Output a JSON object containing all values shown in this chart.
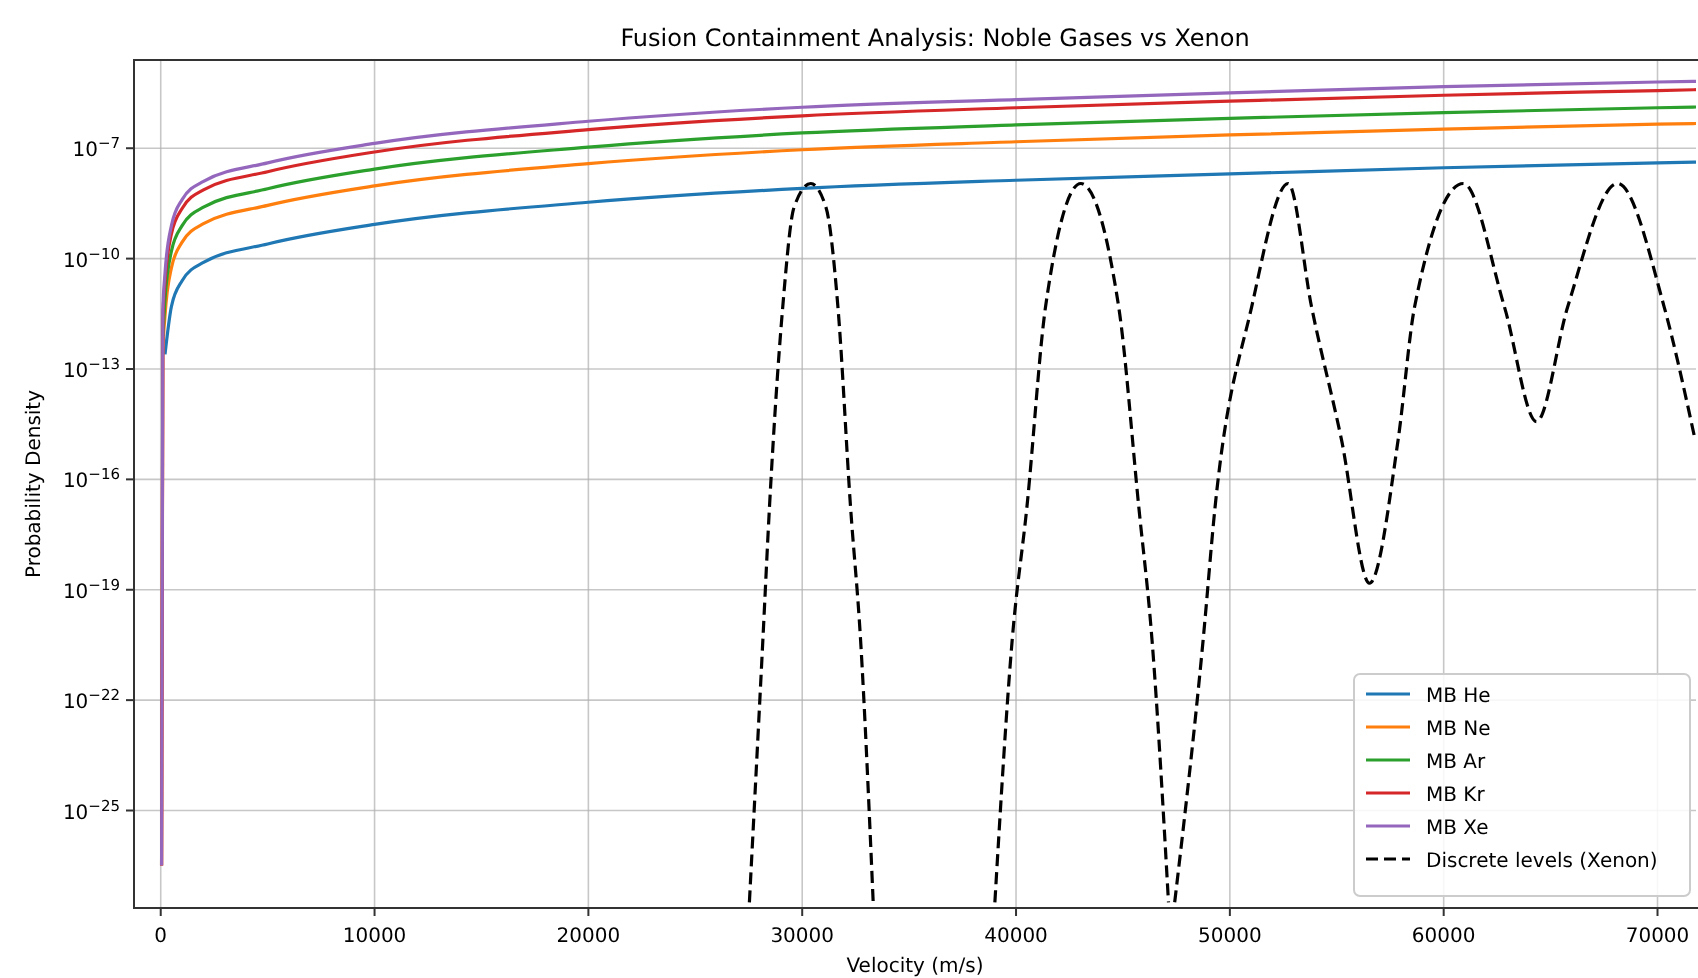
{
  "chart_data": {
    "type": "line",
    "title": "Fusion Containment Analysis: Noble Gases vs Xenon",
    "xlabel": "Velocity (m/s)",
    "ylabel": "Probability Density",
    "log": "y",
    "grid": true,
    "legend": "bottom right",
    "xlim": [
      -1250,
      71800
    ],
    "ylim": [
      2.24e-28,
      2.5e-05
    ],
    "xticks": [
      0,
      10000,
      20000,
      30000,
      40000,
      50000,
      60000,
      70000
    ],
    "yticks": [
      {
        "value": 1e-25,
        "label": "10$^{−25}$"
      },
      {
        "value": 1e-22,
        "label": "10$^{−22}$"
      },
      {
        "value": 1e-19,
        "label": "10$^{−19}$"
      },
      {
        "value": 1e-16,
        "label": "10$^{−16}$"
      },
      {
        "value": 1e-13,
        "label": "10$^{−13}$"
      },
      {
        "value": 1e-10,
        "label": "10$^{−10}$"
      },
      {
        "value": 1e-07,
        "label": "10$^{−7}$"
      }
    ],
    "x": [
      40,
      100,
      200,
      500,
      1000,
      2000,
      5000,
      10000,
      20000,
      30000,
      40000,
      50000,
      60000,
      70000,
      71800
    ],
    "series": [
      {
        "name": "MB He",
        "color": "#1f77b4",
        "values": [
          null,
          null,
          2.5e-13,
          5e-12,
          2.5e-11,
          7.9e-11,
          2.5e-10,
          8.5e-10,
          3.4e-09,
          8.1e-09,
          1.35e-08,
          2e-08,
          2.95e-08,
          4e-08,
          4.2e-08
        ]
      },
      {
        "name": "MB Ne",
        "color": "#ff7f0e",
        "values": [
          3.2e-27,
          2.8e-13,
          2.8e-12,
          5.6e-11,
          2.8e-10,
          8.9e-10,
          2.8e-09,
          9.5e-09,
          3.8e-08,
          9.1e-08,
          1.5e-07,
          2.3e-07,
          3.3e-07,
          4.5e-07,
          4.7e-07
        ]
      },
      {
        "name": "MB Ar",
        "color": "#2ca02c",
        "values": [
          null,
          7.9e-13,
          7.9e-12,
          1.6e-10,
          7.9e-10,
          2.5e-09,
          7.9e-09,
          2.7e-08,
          1.07e-07,
          2.6e-07,
          4.3e-07,
          6.5e-07,
          9.3e-07,
          1.26e-06,
          1.32e-06
        ]
      },
      {
        "name": "MB Kr",
        "color": "#d62728",
        "values": [
          3.2e-27,
          2.3e-12,
          2.3e-11,
          4.7e-10,
          2.3e-09,
          7.4e-09,
          2.3e-08,
          7.9e-08,
          3.2e-07,
          7.6e-07,
          1.26e-06,
          1.9e-06,
          2.75e-06,
          3.7e-06,
          3.9e-06
        ]
      },
      {
        "name": "MB Xe",
        "color": "#9467bd",
        "values": [
          3.2e-27,
          4e-12,
          4e-11,
          7.9e-10,
          4e-09,
          1.26e-08,
          4e-08,
          1.35e-07,
          5.4e-07,
          1.3e-06,
          2.1e-06,
          3.2e-06,
          4.7e-06,
          6.3e-06,
          6.6e-06
        ]
      },
      {
        "name": "Discrete levels (Xenon)",
        "color": "#000000",
        "line_style": "dashed",
        "x": [
          27530,
          28160,
          28470,
          29090,
          29620,
          30400,
          31110,
          31670,
          32260,
          32730,
          33320,
          36000,
          39010,
          39820,
          40510,
          41380,
          43030,
          44800,
          45740,
          46360,
          47130,
          47270,
          47420,
          48750,
          49310,
          51020,
          52730,
          53820,
          55220,
          56530,
          57870,
          58640,
          60920,
          62840,
          64340,
          65800,
          68130,
          70310,
          71750
        ],
        "values": [
          3.2e-28,
          4.3e-21,
          1.8e-17,
          4.9e-12,
          2.5e-09,
          1.1e-08,
          2.5e-09,
          4.9e-12,
          1.8e-17,
          4.3e-21,
          3.2e-28,
          null,
          3.2e-28,
          4.3e-21,
          1.8e-17,
          4.9e-12,
          1.1e-08,
          4.9e-12,
          1.8e-17,
          4.3e-21,
          3.2e-28,
          null,
          3.2e-28,
          4.3e-21,
          1.8e-17,
          4.9e-12,
          1.1e-08,
          4.9e-12,
          1.2e-15,
          1.5e-19,
          1.2e-15,
          4.9e-12,
          1.1e-08,
          4.9e-12,
          3.7e-15,
          4.9e-12,
          1.1e-08,
          4.9e-12,
          1.26e-15
        ]
      }
    ]
  }
}
